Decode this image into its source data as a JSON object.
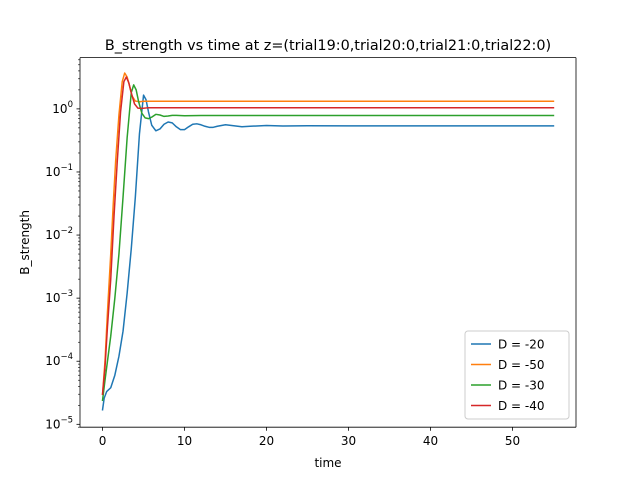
{
  "chart_data": {
    "type": "line",
    "title": "B_strength vs time at z=(trial19:0,trial20:0,trial21:0,trial22:0)",
    "xlabel": "time",
    "ylabel": "B_strength",
    "xlim": [
      -2.75,
      57.75
    ],
    "ylim": [
      9e-06,
      6.5
    ],
    "yscale": "log",
    "x_ticks": [
      0,
      10,
      20,
      30,
      40,
      50
    ],
    "x_tick_labels": [
      "0",
      "10",
      "20",
      "30",
      "40",
      "50"
    ],
    "y_ticks": [
      1e-05,
      0.0001,
      0.001,
      0.01,
      0.1,
      1
    ],
    "y_tick_labels": [
      {
        "base": "10",
        "exp": "−5"
      },
      {
        "base": "10",
        "exp": "−4"
      },
      {
        "base": "10",
        "exp": "−3"
      },
      {
        "base": "10",
        "exp": "−2"
      },
      {
        "base": "10",
        "exp": "−1"
      },
      {
        "base": "10",
        "exp": "0"
      }
    ],
    "grid": false,
    "legend_position": "lower right",
    "series": [
      {
        "name": "D = -20",
        "color": "#1f77b4",
        "points": [
          [
            0,
            1.7e-05
          ],
          [
            0.2,
            2.6e-05
          ],
          [
            0.5,
            3.3e-05
          ],
          [
            1.0,
            3.8e-05
          ],
          [
            1.5,
            6e-05
          ],
          [
            2.0,
            0.00012
          ],
          [
            2.5,
            0.0003
          ],
          [
            3.0,
            0.0012
          ],
          [
            3.5,
            0.006
          ],
          [
            4.0,
            0.04
          ],
          [
            4.5,
            0.4
          ],
          [
            5.0,
            1.65
          ],
          [
            5.3,
            1.4
          ],
          [
            5.6,
            0.9
          ],
          [
            6.0,
            0.55
          ],
          [
            6.5,
            0.45
          ],
          [
            7.0,
            0.48
          ],
          [
            7.5,
            0.57
          ],
          [
            8.0,
            0.62
          ],
          [
            8.5,
            0.6
          ],
          [
            9.0,
            0.52
          ],
          [
            9.5,
            0.47
          ],
          [
            10.0,
            0.47
          ],
          [
            10.5,
            0.52
          ],
          [
            11.0,
            0.57
          ],
          [
            11.5,
            0.58
          ],
          [
            12.0,
            0.56
          ],
          [
            12.5,
            0.53
          ],
          [
            13.0,
            0.51
          ],
          [
            13.5,
            0.51
          ],
          [
            14.0,
            0.53
          ],
          [
            15.0,
            0.56
          ],
          [
            16.0,
            0.54
          ],
          [
            17.0,
            0.52
          ],
          [
            18.0,
            0.53
          ],
          [
            20.0,
            0.545
          ],
          [
            22.0,
            0.535
          ],
          [
            25.0,
            0.54
          ],
          [
            30.0,
            0.538
          ],
          [
            40.0,
            0.538
          ],
          [
            55.0,
            0.538
          ]
        ]
      },
      {
        "name": "D = -50",
        "color": "#ff7f0e",
        "points": [
          [
            0,
            3e-05
          ],
          [
            0.3,
            0.0001
          ],
          [
            0.6,
            0.0006
          ],
          [
            1.0,
            0.005
          ],
          [
            1.3,
            0.03
          ],
          [
            1.6,
            0.15
          ],
          [
            2.0,
            0.8
          ],
          [
            2.4,
            2.7
          ],
          [
            2.7,
            3.7
          ],
          [
            3.0,
            3.2
          ],
          [
            3.3,
            2.3
          ],
          [
            3.6,
            1.6
          ],
          [
            4.0,
            1.33
          ],
          [
            4.5,
            1.3
          ],
          [
            5.0,
            1.32
          ],
          [
            6.0,
            1.32
          ],
          [
            10.0,
            1.32
          ],
          [
            20.0,
            1.32
          ],
          [
            30.0,
            1.32
          ],
          [
            40.0,
            1.32
          ],
          [
            55.0,
            1.32
          ]
        ]
      },
      {
        "name": "D = -30",
        "color": "#2ca02c",
        "points": [
          [
            0,
            2.4e-05
          ],
          [
            0.3,
            5e-05
          ],
          [
            0.6,
            0.0001
          ],
          [
            1.0,
            0.00025
          ],
          [
            1.5,
            0.001
          ],
          [
            2.0,
            0.005
          ],
          [
            2.5,
            0.04
          ],
          [
            3.0,
            0.35
          ],
          [
            3.5,
            1.8
          ],
          [
            3.8,
            2.4
          ],
          [
            4.1,
            2.0
          ],
          [
            4.4,
            1.3
          ],
          [
            4.8,
            0.85
          ],
          [
            5.2,
            0.72
          ],
          [
            5.6,
            0.7
          ],
          [
            6.0,
            0.74
          ],
          [
            6.5,
            0.82
          ],
          [
            7.0,
            0.8
          ],
          [
            7.5,
            0.76
          ],
          [
            8.0,
            0.77
          ],
          [
            8.5,
            0.79
          ],
          [
            9.0,
            0.79
          ],
          [
            10.0,
            0.78
          ],
          [
            12.0,
            0.785
          ],
          [
            15.0,
            0.785
          ],
          [
            20.0,
            0.785
          ],
          [
            30.0,
            0.785
          ],
          [
            40.0,
            0.785
          ],
          [
            55.0,
            0.785
          ]
        ]
      },
      {
        "name": "D = -40",
        "color": "#d62728",
        "points": [
          [
            0,
            3e-05
          ],
          [
            0.3,
            8e-05
          ],
          [
            0.6,
            0.00035
          ],
          [
            1.0,
            0.002
          ],
          [
            1.4,
            0.02
          ],
          [
            1.8,
            0.15
          ],
          [
            2.2,
            0.9
          ],
          [
            2.6,
            2.7
          ],
          [
            2.9,
            3.2
          ],
          [
            3.2,
            2.6
          ],
          [
            3.5,
            1.8
          ],
          [
            3.9,
            1.2
          ],
          [
            4.3,
            1.03
          ],
          [
            4.8,
            1.02
          ],
          [
            5.5,
            1.04
          ],
          [
            6.0,
            1.04
          ],
          [
            10.0,
            1.04
          ],
          [
            20.0,
            1.04
          ],
          [
            30.0,
            1.04
          ],
          [
            40.0,
            1.04
          ],
          [
            55.0,
            1.04
          ]
        ]
      }
    ]
  }
}
